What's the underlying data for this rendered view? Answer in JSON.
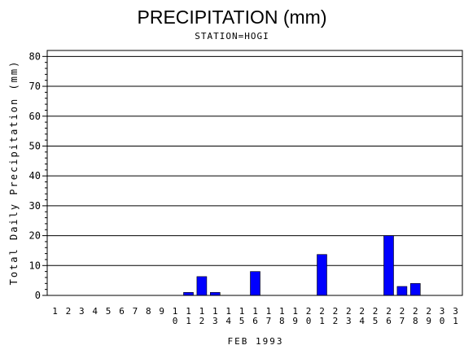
{
  "chart_data": {
    "type": "bar",
    "title": "PRECIPITATION (mm)",
    "subtitle": "STATION=HOGI",
    "xlabel": "FEB 1993",
    "ylabel": "Total Daily Precipitation (mm)",
    "ylim": [
      0,
      82
    ],
    "yticks": [
      0,
      10,
      20,
      30,
      40,
      50,
      60,
      70,
      80
    ],
    "grid": true,
    "bar_color": "#0000ff",
    "categories": [
      "1",
      "2",
      "3",
      "4",
      "5",
      "6",
      "7",
      "8",
      "9",
      "10",
      "11",
      "12",
      "13",
      "14",
      "15",
      "16",
      "17",
      "18",
      "19",
      "20",
      "21",
      "22",
      "23",
      "24",
      "25",
      "26",
      "27",
      "28",
      "29",
      "30",
      "31"
    ],
    "values": [
      0,
      0,
      0,
      0,
      0,
      0,
      0,
      0,
      0,
      0,
      1,
      6.3,
      1,
      0,
      0,
      8,
      0,
      0,
      0,
      0,
      13.7,
      0,
      0,
      0,
      0,
      20,
      3,
      4,
      0,
      0,
      0
    ]
  }
}
